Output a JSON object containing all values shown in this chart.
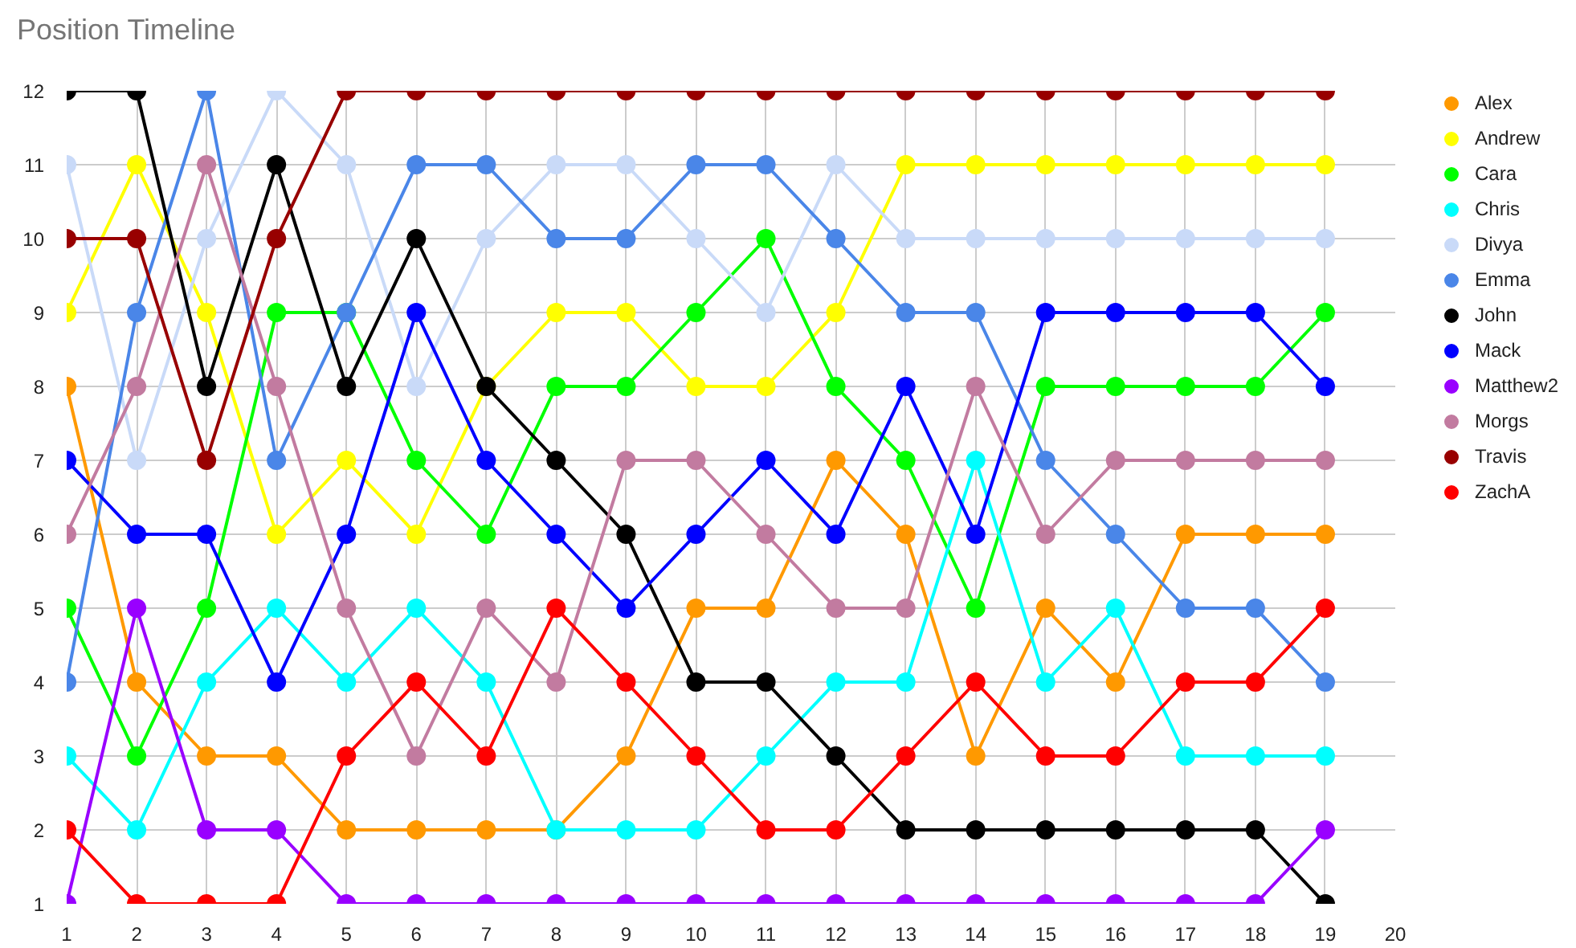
{
  "chart_data": {
    "type": "line",
    "title": "Position Timeline",
    "x": [
      1,
      2,
      3,
      4,
      5,
      6,
      7,
      8,
      9,
      10,
      11,
      12,
      13,
      14,
      15,
      16,
      17,
      18,
      19
    ],
    "series": [
      {
        "name": "Alex",
        "color": "#ff9900",
        "values": [
          8,
          4,
          3,
          3,
          2,
          2,
          2,
          2,
          3,
          5,
          5,
          7,
          6,
          3,
          5,
          4,
          6,
          6,
          6
        ]
      },
      {
        "name": "Andrew",
        "color": "#ffff00",
        "values": [
          9,
          11,
          9,
          6,
          7,
          6,
          8,
          9,
          9,
          8,
          8,
          9,
          11,
          11,
          11,
          11,
          11,
          11,
          11
        ]
      },
      {
        "name": "Cara",
        "color": "#00ff00",
        "values": [
          5,
          3,
          5,
          9,
          9,
          7,
          6,
          8,
          8,
          9,
          10,
          8,
          7,
          5,
          8,
          8,
          8,
          8,
          9
        ]
      },
      {
        "name": "Chris",
        "color": "#00ffff",
        "values": [
          3,
          2,
          4,
          5,
          4,
          5,
          4,
          2,
          2,
          2,
          3,
          4,
          4,
          7,
          4,
          5,
          3,
          3,
          3
        ]
      },
      {
        "name": "Divya",
        "color": "#c9daf8",
        "values": [
          11,
          7,
          10,
          12,
          11,
          8,
          10,
          11,
          11,
          10,
          9,
          11,
          10,
          10,
          10,
          10,
          10,
          10,
          10
        ]
      },
      {
        "name": "Emma",
        "color": "#4a86e8",
        "values": [
          4,
          9,
          12,
          7,
          9,
          11,
          11,
          10,
          10,
          11,
          11,
          10,
          9,
          9,
          7,
          6,
          5,
          5,
          4
        ]
      },
      {
        "name": "John",
        "color": "#000000",
        "values": [
          12,
          12,
          8,
          11,
          8,
          10,
          8,
          7,
          6,
          4,
          4,
          3,
          2,
          2,
          2,
          2,
          2,
          2,
          1
        ]
      },
      {
        "name": "Mack",
        "color": "#0000ff",
        "values": [
          7,
          6,
          6,
          4,
          6,
          9,
          7,
          6,
          5,
          6,
          7,
          6,
          8,
          6,
          9,
          9,
          9,
          9,
          8
        ]
      },
      {
        "name": "Matthew2",
        "color": "#9900ff",
        "values": [
          1,
          5,
          2,
          2,
          1,
          1,
          1,
          1,
          1,
          1,
          1,
          1,
          1,
          1,
          1,
          1,
          1,
          1,
          2
        ]
      },
      {
        "name": "Morgs",
        "color": "#c27ba0",
        "values": [
          6,
          8,
          11,
          8,
          5,
          3,
          5,
          4,
          7,
          7,
          6,
          5,
          5,
          8,
          6,
          7,
          7,
          7,
          7
        ]
      },
      {
        "name": "Travis",
        "color": "#980000",
        "values": [
          10,
          10,
          7,
          10,
          12,
          12,
          12,
          12,
          12,
          12,
          12,
          12,
          12,
          12,
          12,
          12,
          12,
          12,
          12
        ]
      },
      {
        "name": "ZachA",
        "color": "#ff0000",
        "values": [
          2,
          1,
          1,
          1,
          3,
          4,
          3,
          5,
          4,
          3,
          2,
          2,
          3,
          4,
          3,
          3,
          4,
          4,
          5
        ]
      }
    ],
    "xlim": [
      1,
      20
    ],
    "ylim": [
      1,
      12
    ],
    "xticks": [
      1,
      2,
      3,
      4,
      5,
      6,
      7,
      8,
      9,
      10,
      11,
      12,
      13,
      14,
      15,
      16,
      17,
      18,
      19,
      20
    ],
    "yticks": [
      1,
      2,
      3,
      4,
      5,
      6,
      7,
      8,
      9,
      10,
      11,
      12
    ],
    "grid": true,
    "legend": "right",
    "marker": "circle",
    "line_style": "solid"
  }
}
